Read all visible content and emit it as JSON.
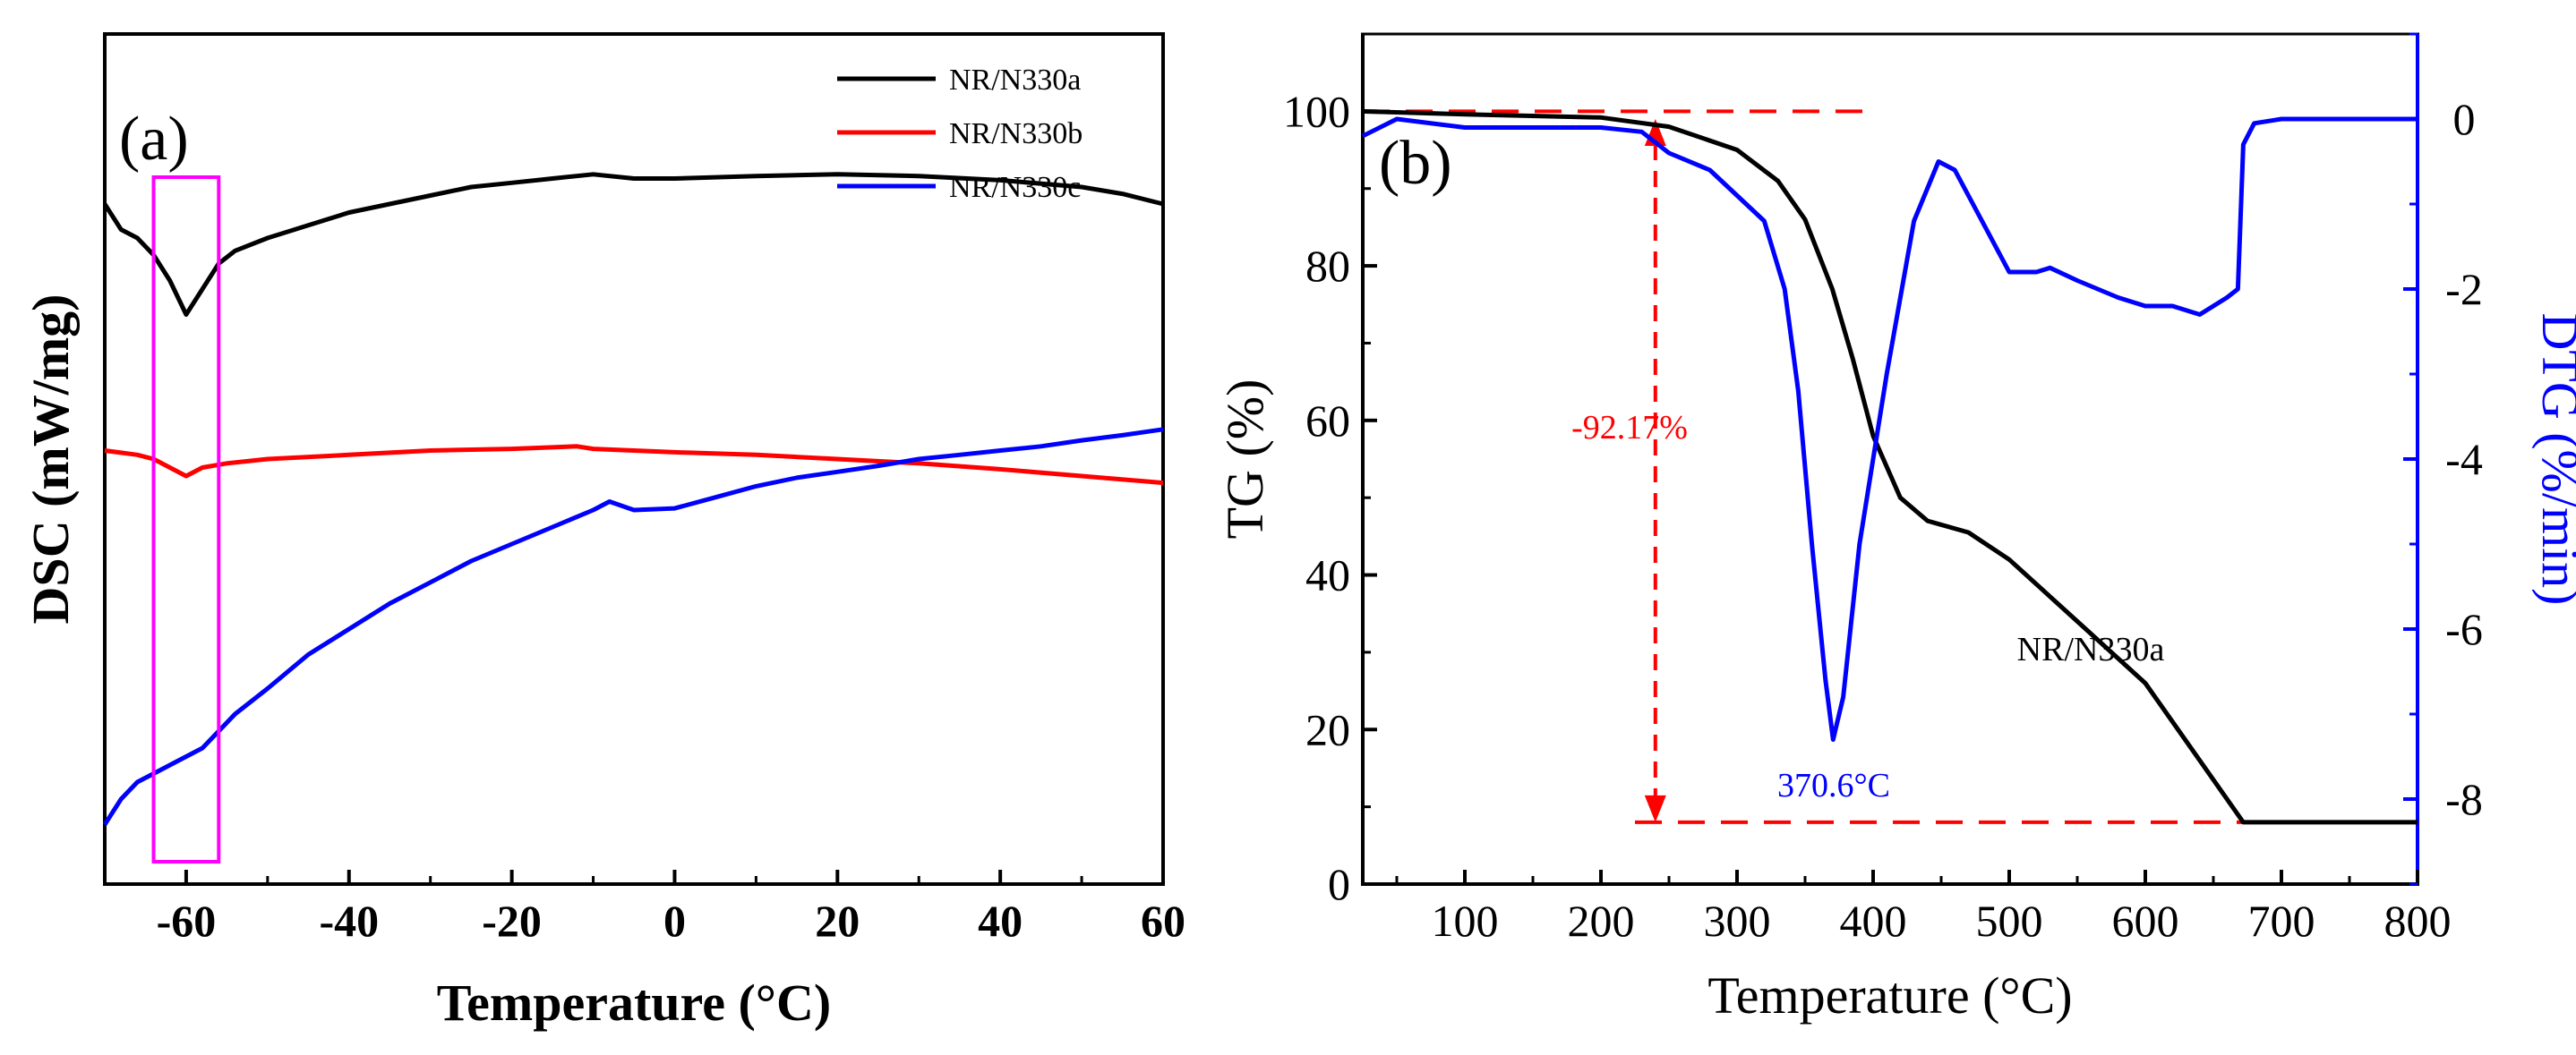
{
  "chart_data": [
    {
      "type": "line",
      "panel_label": "(a)",
      "xlabel": "Temperature (°C)",
      "ylabel": "DSC (mW/mg)",
      "xlim": [
        -70,
        60
      ],
      "ylim": [
        0,
        10
      ],
      "x_ticks": [
        -60,
        -40,
        -20,
        0,
        20,
        40,
        60
      ],
      "y_ticks": [],
      "legend_position": "top-right",
      "series": [
        {
          "name": "NR/N330a",
          "color": "#000000",
          "points": [
            [
              -70,
              8.0
            ],
            [
              -68,
              7.7
            ],
            [
              -66,
              7.6
            ],
            [
              -64,
              7.4
            ],
            [
              -62,
              7.1
            ],
            [
              -60,
              6.7
            ],
            [
              -58,
              7.0
            ],
            [
              -56,
              7.3
            ],
            [
              -54,
              7.45
            ],
            [
              -50,
              7.6
            ],
            [
              -45,
              7.75
            ],
            [
              -40,
              7.9
            ],
            [
              -35,
              8.0
            ],
            [
              -30,
              8.1
            ],
            [
              -25,
              8.2
            ],
            [
              -20,
              8.25
            ],
            [
              -15,
              8.3
            ],
            [
              -10,
              8.35
            ],
            [
              -5,
              8.3
            ],
            [
              0,
              8.3
            ],
            [
              10,
              8.33
            ],
            [
              20,
              8.35
            ],
            [
              30,
              8.33
            ],
            [
              40,
              8.28
            ],
            [
              50,
              8.2
            ],
            [
              55,
              8.12
            ],
            [
              60,
              8.0
            ]
          ]
        },
        {
          "name": "NR/N330b",
          "color": "#ff0000",
          "points": [
            [
              -70,
              5.1
            ],
            [
              -66,
              5.05
            ],
            [
              -64,
              5.0
            ],
            [
              -62,
              4.9
            ],
            [
              -60,
              4.8
            ],
            [
              -58,
              4.9
            ],
            [
              -55,
              4.95
            ],
            [
              -50,
              5.0
            ],
            [
              -40,
              5.05
            ],
            [
              -30,
              5.1
            ],
            [
              -20,
              5.12
            ],
            [
              -12,
              5.15
            ],
            [
              -10,
              5.12
            ],
            [
              -5,
              5.1
            ],
            [
              0,
              5.08
            ],
            [
              10,
              5.05
            ],
            [
              20,
              5.0
            ],
            [
              30,
              4.95
            ],
            [
              40,
              4.88
            ],
            [
              50,
              4.8
            ],
            [
              60,
              4.72
            ]
          ]
        },
        {
          "name": "NR/N330c",
          "color": "#0000ff",
          "points": [
            [
              -70,
              0.7
            ],
            [
              -68,
              1.0
            ],
            [
              -66,
              1.2
            ],
            [
              -64,
              1.3
            ],
            [
              -62,
              1.4
            ],
            [
              -60,
              1.5
            ],
            [
              -58,
              1.6
            ],
            [
              -56,
              1.8
            ],
            [
              -54,
              2.0
            ],
            [
              -50,
              2.3
            ],
            [
              -45,
              2.7
            ],
            [
              -40,
              3.0
            ],
            [
              -35,
              3.3
            ],
            [
              -30,
              3.55
            ],
            [
              -25,
              3.8
            ],
            [
              -20,
              4.0
            ],
            [
              -15,
              4.2
            ],
            [
              -10,
              4.4
            ],
            [
              -8,
              4.5
            ],
            [
              -5,
              4.4
            ],
            [
              0,
              4.42
            ],
            [
              5,
              4.55
            ],
            [
              10,
              4.68
            ],
            [
              15,
              4.78
            ],
            [
              20,
              4.85
            ],
            [
              25,
              4.92
            ],
            [
              30,
              5.0
            ],
            [
              35,
              5.05
            ],
            [
              40,
              5.1
            ],
            [
              45,
              5.15
            ],
            [
              50,
              5.22
            ],
            [
              55,
              5.28
            ],
            [
              60,
              5.35
            ]
          ]
        }
      ],
      "highlight_box": {
        "x_range": [
          -64,
          -56
        ],
        "color": "#ff00ff"
      }
    },
    {
      "type": "line",
      "panel_label": "(b)",
      "xlabel": "Temperature (°C)",
      "ylabel_left": "TG (%)",
      "ylabel_right": "DTG (%/min)",
      "xlim": [
        25,
        800
      ],
      "ylim_left": [
        0,
        110
      ],
      "ylim_right": [
        -9,
        1
      ],
      "x_ticks": [
        100,
        200,
        300,
        400,
        500,
        600,
        700,
        800
      ],
      "y_ticks_left": [
        0,
        20,
        40,
        60,
        80,
        100
      ],
      "y_ticks_right": [
        0,
        -2,
        -4,
        -6,
        -8
      ],
      "series": [
        {
          "name": "NR/N330a",
          "axis": "left",
          "color": "#000000",
          "points": [
            [
              25,
              100
            ],
            [
              100,
              99.6
            ],
            [
              200,
              99.2
            ],
            [
              250,
              98
            ],
            [
              300,
              95
            ],
            [
              330,
              91
            ],
            [
              350,
              86
            ],
            [
              370,
              77
            ],
            [
              385,
              68
            ],
            [
              400,
              58
            ],
            [
              420,
              50
            ],
            [
              440,
              47
            ],
            [
              470,
              45.5
            ],
            [
              500,
              42
            ],
            [
              550,
              34
            ],
            [
              600,
              26
            ],
            [
              640,
              16
            ],
            [
              672,
              8
            ],
            [
              700,
              8
            ],
            [
              800,
              8
            ]
          ]
        },
        {
          "name": "DTG",
          "axis": "right",
          "color": "#0000ff",
          "points": [
            [
              25,
              -0.2
            ],
            [
              50,
              0.0
            ],
            [
              100,
              -0.1
            ],
            [
              150,
              -0.1
            ],
            [
              200,
              -0.1
            ],
            [
              230,
              -0.15
            ],
            [
              250,
              -0.4
            ],
            [
              280,
              -0.6
            ],
            [
              300,
              -0.9
            ],
            [
              320,
              -1.2
            ],
            [
              335,
              -2.0
            ],
            [
              345,
              -3.2
            ],
            [
              355,
              -5.0
            ],
            [
              365,
              -6.6
            ],
            [
              370.6,
              -7.3
            ],
            [
              378,
              -6.8
            ],
            [
              390,
              -5.0
            ],
            [
              410,
              -3.0
            ],
            [
              430,
              -1.2
            ],
            [
              448,
              -0.5
            ],
            [
              460,
              -0.6
            ],
            [
              480,
              -1.2
            ],
            [
              500,
              -1.8
            ],
            [
              520,
              -1.8
            ],
            [
              530,
              -1.75
            ],
            [
              550,
              -1.9
            ],
            [
              580,
              -2.1
            ],
            [
              600,
              -2.2
            ],
            [
              620,
              -2.2
            ],
            [
              640,
              -2.3
            ],
            [
              660,
              -2.1
            ],
            [
              668,
              -2.0
            ],
            [
              672,
              -0.3
            ],
            [
              680,
              -0.05
            ],
            [
              700,
              0.0
            ],
            [
              750,
              0.0
            ],
            [
              800,
              0.0
            ]
          ]
        }
      ],
      "annotations": [
        {
          "text": "-92.17%",
          "color": "#ff0000"
        },
        {
          "text": "370.6°C",
          "color": "#0000ff"
        },
        {
          "text": "NR/N330a",
          "color": "#000000"
        }
      ]
    }
  ]
}
